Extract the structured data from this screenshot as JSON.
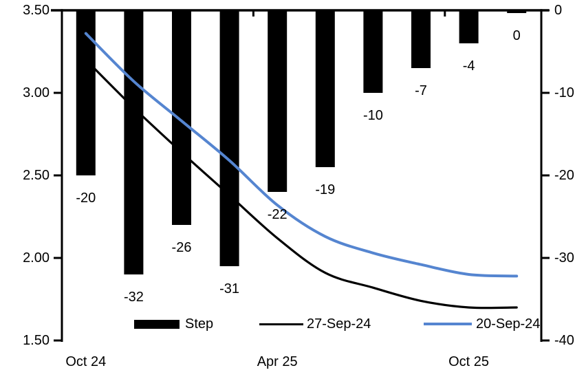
{
  "chart_data": {
    "type": "combo-bar-line",
    "title": "",
    "bar_series": {
      "name": "Step",
      "axis": "right",
      "color": "#000000",
      "values": [
        -20,
        -32,
        -26,
        -31,
        -22,
        -19,
        -10,
        -7,
        -4,
        0
      ],
      "labels": [
        "-20",
        "-32",
        "-26",
        "-31",
        "-22",
        "-19",
        "-10",
        "-7",
        "-4",
        "0"
      ]
    },
    "line_series": [
      {
        "name": "27-Sep-24",
        "axis": "left",
        "color": "#000000",
        "values": [
          3.2,
          2.91,
          2.64,
          2.38,
          2.12,
          1.91,
          1.82,
          1.74,
          1.7,
          1.7
        ]
      },
      {
        "name": "20-Sep-24",
        "axis": "left",
        "color": "#5585D0",
        "values": [
          3.36,
          3.07,
          2.83,
          2.59,
          2.32,
          2.13,
          2.03,
          1.96,
          1.9,
          1.89
        ]
      }
    ],
    "left_axis": {
      "min": 1.5,
      "max": 3.5,
      "tick_labels": [
        "3.50",
        "3.00",
        "2.50",
        "2.00",
        "1.50"
      ]
    },
    "right_axis": {
      "min": -40,
      "max": 0,
      "tick_labels": [
        "0",
        "-10",
        "-20",
        "-30",
        "-40"
      ]
    },
    "x_axis": {
      "tick_labels": [
        {
          "label": "Oct 24",
          "bar_index": 0
        },
        {
          "label": "Apr 25",
          "bar_index": 4
        },
        {
          "label": "Oct 25",
          "bar_index": 8
        }
      ]
    },
    "legend": {
      "position": "bottom-inside",
      "items": [
        {
          "label": "Step",
          "swatch": "bar"
        },
        {
          "label": "27-Sep-24",
          "swatch": "line"
        },
        {
          "label": "20-Sep-24",
          "swatch": "line"
        }
      ]
    },
    "grid": "off"
  }
}
